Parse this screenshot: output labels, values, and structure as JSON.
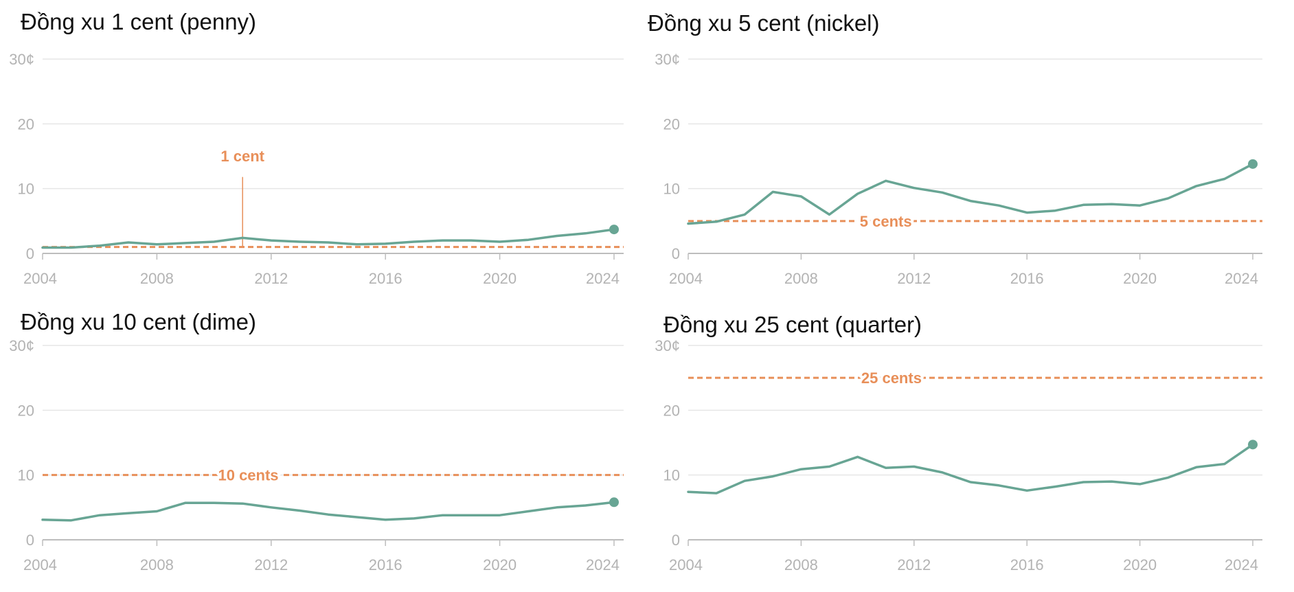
{
  "colors": {
    "series": "#68a594",
    "reference": "#e88f59",
    "grid": "#e6e6e6",
    "axis": "#bdbdbd",
    "tick_text": "#b3b3b3"
  },
  "chart_data": [
    {
      "type": "line",
      "title": "Đồng xu 1 cent (penny)",
      "x": [
        2004,
        2005,
        2006,
        2007,
        2008,
        2009,
        2010,
        2011,
        2012,
        2013,
        2014,
        2015,
        2016,
        2017,
        2018,
        2019,
        2020,
        2021,
        2022,
        2023,
        2024
      ],
      "series": [
        {
          "values": [
            0.9,
            0.9,
            1.2,
            1.7,
            1.4,
            1.6,
            1.8,
            2.4,
            2.0,
            1.8,
            1.7,
            1.4,
            1.5,
            1.8,
            2.0,
            2.0,
            1.8,
            2.1,
            2.7,
            3.1,
            3.7
          ]
        }
      ],
      "reference": {
        "value": 1,
        "label": "1 cent",
        "style": "leader-line",
        "label_year": 2011
      },
      "ylim": [
        0,
        30
      ],
      "yticks": [
        "30¢",
        "20",
        "10",
        "0"
      ],
      "xticks": [
        "2004",
        "2008",
        "2012",
        "2016",
        "2020",
        "2024"
      ],
      "endpoint_marker": true,
      "grid": true
    },
    {
      "type": "line",
      "title": "Đồng xu 5 cent (nickel)",
      "x": [
        2004,
        2005,
        2006,
        2007,
        2008,
        2009,
        2010,
        2011,
        2012,
        2013,
        2014,
        2015,
        2016,
        2017,
        2018,
        2019,
        2020,
        2021,
        2022,
        2023,
        2024
      ],
      "series": [
        {
          "values": [
            4.6,
            4.9,
            6.0,
            9.5,
            8.8,
            6.0,
            9.2,
            11.2,
            10.1,
            9.4,
            8.1,
            7.4,
            6.3,
            6.6,
            7.5,
            7.6,
            7.4,
            8.5,
            10.4,
            11.5,
            13.8
          ]
        }
      ],
      "reference": {
        "value": 5,
        "label": "5 cents",
        "style": "dashed-inline",
        "label_year": 2011
      },
      "ylim": [
        0,
        30
      ],
      "yticks": [
        "30¢",
        "20",
        "10",
        "0"
      ],
      "xticks": [
        "2004",
        "2008",
        "2012",
        "2016",
        "2020",
        "2024"
      ],
      "endpoint_marker": true,
      "grid": true
    },
    {
      "type": "line",
      "title": "Đồng xu 10 cent (dime)",
      "x": [
        2004,
        2005,
        2006,
        2007,
        2008,
        2009,
        2010,
        2011,
        2012,
        2013,
        2014,
        2015,
        2016,
        2017,
        2018,
        2019,
        2020,
        2021,
        2022,
        2023,
        2024
      ],
      "series": [
        {
          "values": [
            3.1,
            3.0,
            3.8,
            4.1,
            4.4,
            5.7,
            5.7,
            5.6,
            5.0,
            4.5,
            3.9,
            3.5,
            3.1,
            3.3,
            3.8,
            3.8,
            3.8,
            4.4,
            5.0,
            5.3,
            5.8
          ]
        }
      ],
      "reference": {
        "value": 10,
        "label": "10 cents",
        "style": "dashed-inline",
        "label_year": 2011.2
      },
      "ylim": [
        0,
        30
      ],
      "yticks": [
        "30¢",
        "20",
        "10",
        "0"
      ],
      "xticks": [
        "2004",
        "2008",
        "2012",
        "2016",
        "2020",
        "2024"
      ],
      "endpoint_marker": true,
      "grid": true
    },
    {
      "type": "line",
      "title": "Đồng xu 25 cent (quarter)",
      "x": [
        2004,
        2005,
        2006,
        2007,
        2008,
        2009,
        2010,
        2011,
        2012,
        2013,
        2014,
        2015,
        2016,
        2017,
        2018,
        2019,
        2020,
        2021,
        2022,
        2023,
        2024
      ],
      "series": [
        {
          "values": [
            7.4,
            7.2,
            9.1,
            9.8,
            10.9,
            11.3,
            12.8,
            11.1,
            11.3,
            10.4,
            8.9,
            8.4,
            7.6,
            8.2,
            8.9,
            9.0,
            8.6,
            9.6,
            11.2,
            11.7,
            14.7
          ]
        }
      ],
      "reference": {
        "value": 25,
        "label": "25 cents",
        "style": "dashed-inline",
        "label_year": 2011.2
      },
      "ylim": [
        0,
        30
      ],
      "yticks": [
        "30¢",
        "20",
        "10",
        "0"
      ],
      "xticks": [
        "2004",
        "2008",
        "2012",
        "2016",
        "2020",
        "2024"
      ],
      "endpoint_marker": true,
      "grid": true
    }
  ]
}
